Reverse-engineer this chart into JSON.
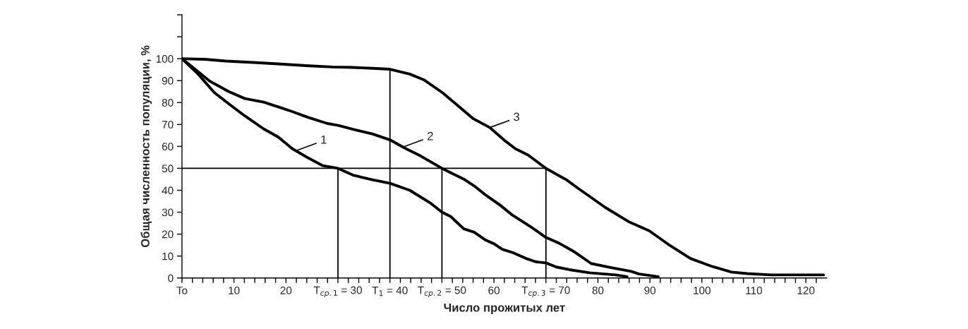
{
  "chart_data": {
    "type": "line",
    "xlabel": "Число прожитых лет",
    "ylabel": "Общая численность популяции, %",
    "xlim": [
      0,
      124
    ],
    "ylim": [
      0,
      120
    ],
    "xticks": [
      {
        "value": 0,
        "label": "To"
      },
      {
        "value": 2,
        "label": null
      },
      {
        "value": 4,
        "label": null
      },
      {
        "value": 6,
        "label": null
      },
      {
        "value": 8,
        "label": null
      },
      10,
      {
        "value": 12,
        "label": null
      },
      {
        "value": 14,
        "label": null
      },
      {
        "value": 16,
        "label": null
      },
      {
        "value": 18,
        "label": null
      },
      20,
      {
        "value": 22,
        "label": null
      },
      {
        "value": 24,
        "label": null
      },
      {
        "value": 26,
        "label": null
      },
      {
        "value": 28,
        "label": null
      },
      {
        "value": 30,
        "label": "T$_{ср.1}$ = 30"
      },
      {
        "value": 32,
        "label": null
      },
      {
        "value": 34,
        "label": null
      },
      {
        "value": 36,
        "label": null
      },
      {
        "value": 38,
        "label": null
      },
      {
        "value": 40,
        "label": "T$_{1}$ = 40"
      },
      {
        "value": 42,
        "label": null
      },
      {
        "value": 44,
        "label": null
      },
      {
        "value": 46,
        "label": null
      },
      {
        "value": 48,
        "label": null
      },
      {
        "value": 50,
        "label": "T$_{ср.2}$ = 50"
      },
      {
        "value": 52,
        "label": null
      },
      {
        "value": 54,
        "label": null
      },
      {
        "value": 56,
        "label": null
      },
      {
        "value": 58,
        "label": null
      },
      60,
      {
        "value": 62,
        "label": null
      },
      {
        "value": 64,
        "label": null
      },
      {
        "value": 66,
        "label": null
      },
      {
        "value": 68,
        "label": null
      },
      {
        "value": 70,
        "label": "T$_{ср.3}$ = 70"
      },
      {
        "value": 72,
        "label": null
      },
      {
        "value": 74,
        "label": null
      },
      {
        "value": 76,
        "label": null
      },
      {
        "value": 78,
        "label": null
      },
      80,
      {
        "value": 82,
        "label": null
      },
      {
        "value": 84,
        "label": null
      },
      {
        "value": 86,
        "label": null
      },
      {
        "value": 88,
        "label": null
      },
      90,
      {
        "value": 92,
        "label": null
      },
      {
        "value": 94,
        "label": null
      },
      {
        "value": 96,
        "label": null
      },
      {
        "value": 98,
        "label": null
      },
      100,
      {
        "value": 102,
        "label": null
      },
      {
        "value": 104,
        "label": null
      },
      {
        "value": 106,
        "label": null
      },
      {
        "value": 108,
        "label": null
      },
      110,
      {
        "value": 112,
        "label": null
      },
      {
        "value": 114,
        "label": null
      },
      {
        "value": 116,
        "label": null
      },
      {
        "value": 118,
        "label": null
      },
      120,
      {
        "value": 122,
        "label": null
      }
    ],
    "yticks": [
      0,
      10,
      20,
      30,
      40,
      50,
      60,
      70,
      80,
      90,
      100,
      {
        "value": 110,
        "label": null
      },
      {
        "value": 120,
        "label": null
      }
    ],
    "grid": false,
    "legend": false,
    "marker": "none",
    "line_style": "solid",
    "series": [
      {
        "color": "#000000",
        "x": [
          0,
          3.1,
          6.2,
          9.4,
          12.1,
          15.7,
          18.5,
          21.2,
          24.3,
          27.1,
          30,
          32.9,
          36.6,
          40,
          43.8,
          47.9,
          50,
          51.7,
          54.2,
          56.2,
          58.4,
          60.1,
          61.6,
          63.6,
          66.1,
          68,
          70,
          72,
          74.5,
          78.4,
          83.4,
          85.6
        ],
        "values": [
          100,
          93,
          84.6,
          78.7,
          73.9,
          68,
          64.3,
          59,
          54.7,
          51.2,
          50,
          46.9,
          44.8,
          43.2,
          40,
          34,
          30,
          28,
          22.4,
          20.9,
          17.3,
          15.5,
          13.1,
          11.6,
          9,
          7.4,
          6.9,
          5,
          3.8,
          2.4,
          1.4,
          0.6
        ]
      },
      {
        "color": "#000000",
        "x": [
          0,
          3.1,
          5.3,
          9,
          12.1,
          15.7,
          18.5,
          21.2,
          24.3,
          27.9,
          30.2,
          32.9,
          36.6,
          40,
          42.8,
          46,
          50,
          54.2,
          56.2,
          58.2,
          61.2,
          63.6,
          67.1,
          70,
          72.5,
          75.5,
          78.7,
          82.4,
          86.4,
          87.9,
          91.6
        ],
        "values": [
          100,
          94.1,
          89.8,
          85,
          81.8,
          80.2,
          78,
          75.9,
          73.2,
          70.5,
          69.5,
          67.8,
          65.7,
          63,
          59.3,
          55.5,
          50,
          45.1,
          42,
          38.2,
          33.2,
          28.6,
          23.3,
          18.5,
          15.9,
          11.9,
          6.6,
          4.8,
          3,
          1.8,
          0.6
        ]
      },
      {
        "color": "#000000",
        "x": [
          0,
          4.4,
          8.5,
          14.4,
          18.5,
          23.9,
          28.9,
          32.9,
          36.6,
          40,
          43.8,
          46.5,
          50.1,
          52.8,
          56,
          59.2,
          62.1,
          64.1,
          66.6,
          70,
          74,
          76,
          81.4,
          85.9,
          89.9,
          93.8,
          97.8,
          101.8,
          105.7,
          108.7,
          113.2,
          123.4
        ],
        "values": [
          100,
          99.7,
          98.9,
          98.2,
          97.6,
          96.8,
          96.2,
          96,
          95.6,
          95.2,
          93,
          90.4,
          84.5,
          79.1,
          72.7,
          68.6,
          62.6,
          59,
          56,
          50,
          44.7,
          41.2,
          32.2,
          25.7,
          21.5,
          14.9,
          8.9,
          5.4,
          2.7,
          2,
          1.4,
          1.4
        ]
      },
      {
        "color": "#000000",
        "x": [
          0,
          70
        ],
        "values": [
          50,
          50
        ]
      },
      {
        "color": "#000000",
        "x": [
          30,
          30
        ],
        "values": [
          0,
          50
        ]
      },
      {
        "color": "#000000",
        "x": [
          40,
          40
        ],
        "values": [
          0,
          95
        ]
      },
      {
        "color": "#000000",
        "x": [
          50,
          50
        ],
        "values": [
          0,
          50
        ]
      },
      {
        "color": "#000000",
        "x": [
          70,
          70
        ],
        "values": [
          0,
          50
        ]
      }
    ],
    "annotations": [
      {
        "text": "1",
        "x": 22.1,
        "y": 58.2
      },
      {
        "text": "2",
        "x": 42.6,
        "y": 59.8
      },
      {
        "text": "3",
        "x": 59.2,
        "y": 68.6
      }
    ]
  }
}
